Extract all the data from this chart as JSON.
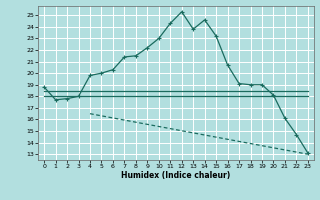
{
  "xlabel": "Humidex (Indice chaleur)",
  "bg_color": "#b2dfdf",
  "grid_color": "#ffffff",
  "line_color": "#1a6b5e",
  "x_ticks": [
    0,
    1,
    2,
    3,
    4,
    5,
    6,
    7,
    8,
    9,
    10,
    11,
    12,
    13,
    14,
    15,
    16,
    17,
    18,
    19,
    20,
    21,
    22,
    23
  ],
  "y_ticks": [
    13,
    14,
    15,
    16,
    17,
    18,
    19,
    20,
    21,
    22,
    23,
    24,
    25
  ],
  "ylim": [
    12.5,
    25.8
  ],
  "xlim": [
    -0.5,
    23.5
  ],
  "line1_x": [
    0,
    1,
    2,
    3,
    4,
    5,
    6,
    7,
    8,
    9,
    10,
    11,
    12,
    13,
    14,
    15,
    16,
    17,
    18,
    19,
    20,
    21,
    22,
    23
  ],
  "line1_y": [
    18.8,
    17.7,
    17.8,
    18.0,
    19.8,
    20.0,
    20.3,
    21.4,
    21.5,
    22.2,
    23.0,
    24.3,
    25.3,
    23.8,
    24.6,
    23.2,
    20.7,
    19.1,
    19.0,
    19.0,
    18.1,
    16.1,
    14.7,
    13.1
  ],
  "line2_x": [
    0,
    23
  ],
  "line2_y": [
    18.5,
    18.5
  ],
  "line3_x": [
    0,
    23
  ],
  "line3_y": [
    18.0,
    18.0
  ],
  "line4_x": [
    4,
    23
  ],
  "line4_y": [
    16.5,
    13.0
  ]
}
